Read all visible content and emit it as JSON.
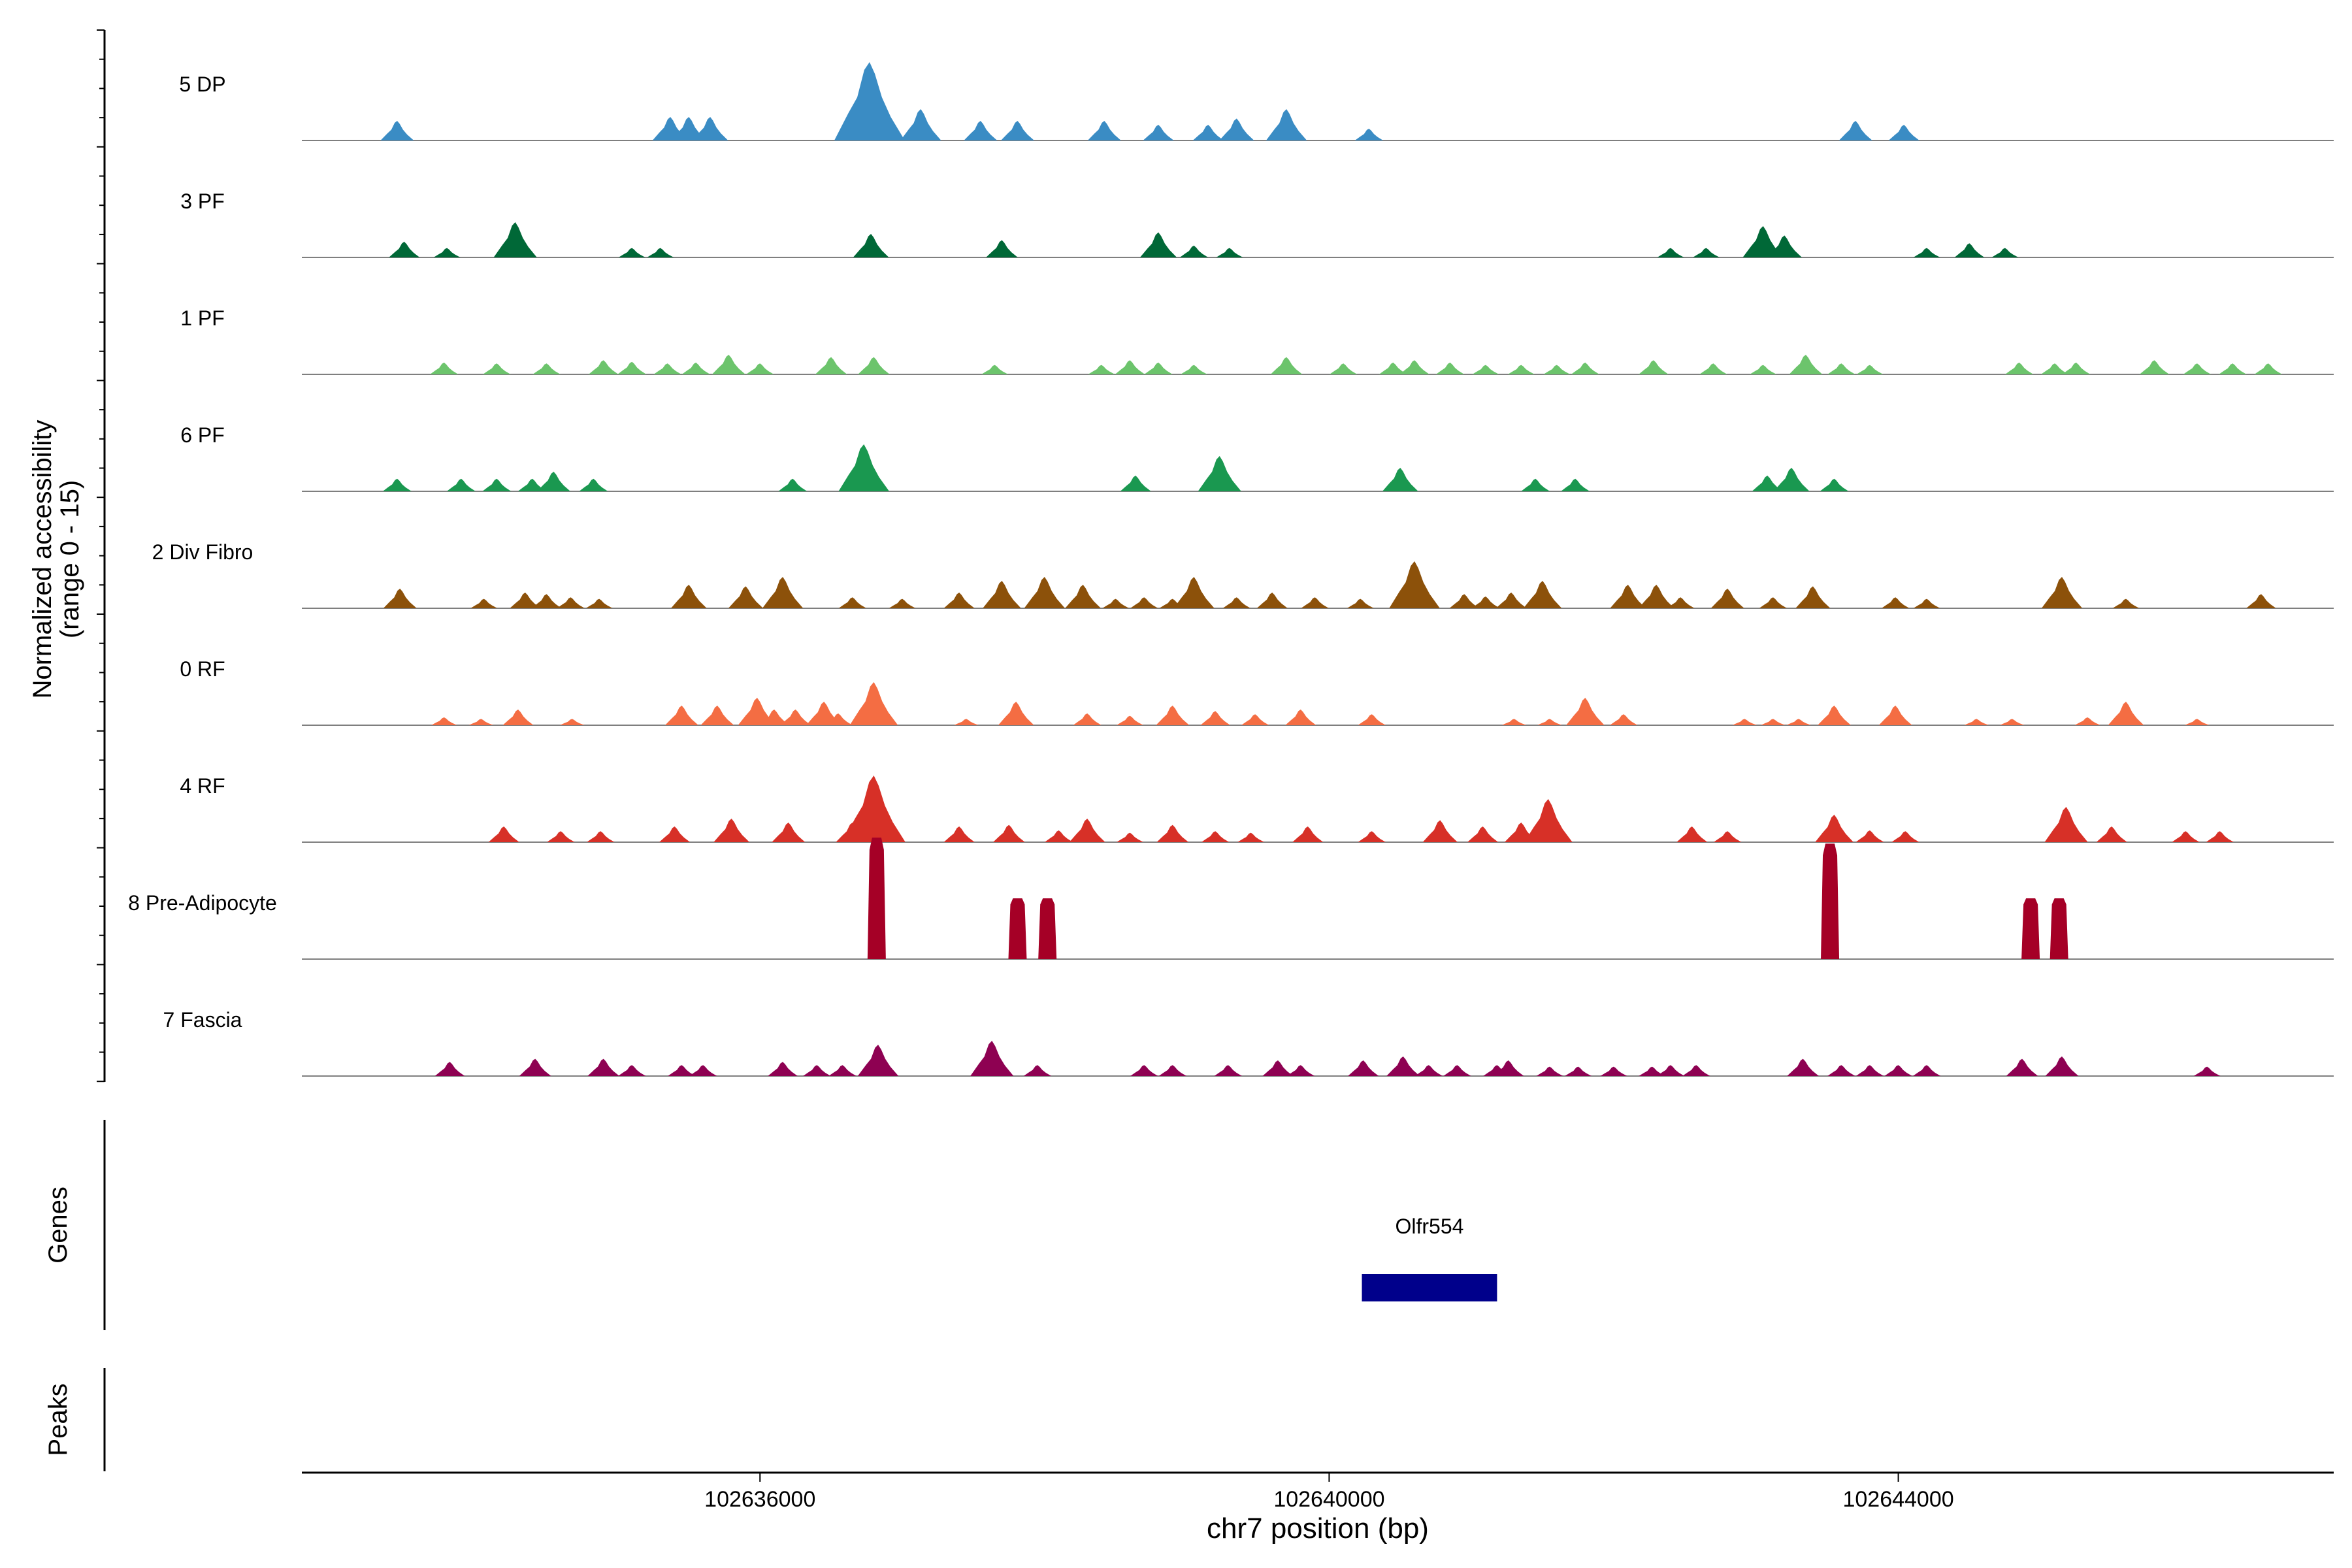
{
  "chart_data": {
    "type": "area",
    "ylabel_line1": "Normalized accessibility",
    "ylabel_line2": "(range 0 - 15)",
    "xlabel": "chr7 position (bp)",
    "xlim": [
      102632780,
      102647060
    ],
    "xticks": [
      102636000,
      102640000,
      102644000
    ],
    "xtick_labels": [
      "102636000",
      "102640000",
      "102644000"
    ],
    "tracks": [
      {
        "name": "5 DP",
        "color": "#3a8cc4",
        "peaks": [
          [
            102633450,
            0.25
          ],
          [
            102635370,
            0.3
          ],
          [
            102635500,
            0.3
          ],
          [
            102635650,
            0.3
          ],
          [
            102636770,
            1.0
          ],
          [
            102637130,
            0.4
          ],
          [
            102637550,
            0.25
          ],
          [
            102637810,
            0.25
          ],
          [
            102638420,
            0.25
          ],
          [
            102638800,
            0.2
          ],
          [
            102639150,
            0.2
          ],
          [
            102639350,
            0.28
          ],
          [
            102639700,
            0.4
          ],
          [
            102640280,
            0.15
          ],
          [
            102643700,
            0.25
          ],
          [
            102644040,
            0.2
          ]
        ]
      },
      {
        "name": "3 PF",
        "color": "#006837",
        "peaks": [
          [
            102633500,
            0.2
          ],
          [
            102633800,
            0.12
          ],
          [
            102634280,
            0.45
          ],
          [
            102635100,
            0.12
          ],
          [
            102635300,
            0.12
          ],
          [
            102636780,
            0.3
          ],
          [
            102637700,
            0.22
          ],
          [
            102638800,
            0.32
          ],
          [
            102639050,
            0.15
          ],
          [
            102639300,
            0.12
          ],
          [
            102642400,
            0.12
          ],
          [
            102642650,
            0.12
          ],
          [
            102643050,
            0.4
          ],
          [
            102643200,
            0.28
          ],
          [
            102644200,
            0.12
          ],
          [
            102644500,
            0.18
          ],
          [
            102644750,
            0.12
          ]
        ]
      },
      {
        "name": "1 PF",
        "color": "#6cc46c",
        "peaks": [
          [
            102633780,
            0.15
          ],
          [
            102634150,
            0.14
          ],
          [
            102634500,
            0.14
          ],
          [
            102634900,
            0.18
          ],
          [
            102635100,
            0.16
          ],
          [
            102635350,
            0.14
          ],
          [
            102635550,
            0.15
          ],
          [
            102635780,
            0.25
          ],
          [
            102636000,
            0.14
          ],
          [
            102636500,
            0.22
          ],
          [
            102636800,
            0.22
          ],
          [
            102637650,
            0.12
          ],
          [
            102638400,
            0.12
          ],
          [
            102638600,
            0.18
          ],
          [
            102638800,
            0.15
          ],
          [
            102639050,
            0.12
          ],
          [
            102639700,
            0.22
          ],
          [
            102640100,
            0.14
          ],
          [
            102640450,
            0.15
          ],
          [
            102640600,
            0.18
          ],
          [
            102640850,
            0.15
          ],
          [
            102641100,
            0.12
          ],
          [
            102641350,
            0.12
          ],
          [
            102641600,
            0.12
          ],
          [
            102641800,
            0.15
          ],
          [
            102642280,
            0.18
          ],
          [
            102642700,
            0.14
          ],
          [
            102643050,
            0.12
          ],
          [
            102643350,
            0.25
          ],
          [
            102643600,
            0.14
          ],
          [
            102643800,
            0.12
          ],
          [
            102644850,
            0.15
          ],
          [
            102645100,
            0.14
          ],
          [
            102645250,
            0.15
          ],
          [
            102645800,
            0.18
          ],
          [
            102646100,
            0.14
          ],
          [
            102646350,
            0.14
          ],
          [
            102646600,
            0.14
          ]
        ]
      },
      {
        "name": "6 PF",
        "color": "#1a9850",
        "peaks": [
          [
            102633450,
            0.16
          ],
          [
            102633900,
            0.16
          ],
          [
            102634150,
            0.16
          ],
          [
            102634400,
            0.16
          ],
          [
            102634550,
            0.25
          ],
          [
            102634830,
            0.16
          ],
          [
            102636230,
            0.16
          ],
          [
            102636730,
            0.6
          ],
          [
            102638640,
            0.2
          ],
          [
            102639230,
            0.45
          ],
          [
            102640500,
            0.3
          ],
          [
            102641450,
            0.16
          ],
          [
            102641730,
            0.16
          ],
          [
            102643080,
            0.2
          ],
          [
            102643250,
            0.3
          ],
          [
            102643550,
            0.16
          ]
        ]
      },
      {
        "name": "2 Div Fibro",
        "color": "#8c510a",
        "peaks": [
          [
            102633470,
            0.25
          ],
          [
            102634060,
            0.12
          ],
          [
            102634350,
            0.2
          ],
          [
            102634500,
            0.18
          ],
          [
            102634670,
            0.14
          ],
          [
            102634870,
            0.12
          ],
          [
            102635500,
            0.3
          ],
          [
            102635900,
            0.28
          ],
          [
            102636160,
            0.4
          ],
          [
            102636650,
            0.14
          ],
          [
            102637000,
            0.12
          ],
          [
            102637400,
            0.2
          ],
          [
            102637700,
            0.35
          ],
          [
            102638000,
            0.4
          ],
          [
            102638270,
            0.3
          ],
          [
            102638500,
            0.12
          ],
          [
            102638700,
            0.14
          ],
          [
            102638900,
            0.12
          ],
          [
            102639050,
            0.4
          ],
          [
            102639350,
            0.14
          ],
          [
            102639600,
            0.2
          ],
          [
            102639900,
            0.14
          ],
          [
            102640220,
            0.12
          ],
          [
            102640600,
            0.6
          ],
          [
            102640950,
            0.18
          ],
          [
            102641100,
            0.15
          ],
          [
            102641280,
            0.2
          ],
          [
            102641500,
            0.35
          ],
          [
            102642100,
            0.3
          ],
          [
            102642300,
            0.3
          ],
          [
            102642470,
            0.14
          ],
          [
            102642800,
            0.25
          ],
          [
            102643120,
            0.14
          ],
          [
            102643400,
            0.28
          ],
          [
            102643980,
            0.14
          ],
          [
            102644200,
            0.12
          ],
          [
            102645150,
            0.4
          ],
          [
            102645600,
            0.12
          ],
          [
            102646550,
            0.18
          ]
        ]
      },
      {
        "name": "0 RF",
        "color": "#f46d43",
        "peaks": [
          [
            102633780,
            0.1
          ],
          [
            102634040,
            0.08
          ],
          [
            102634300,
            0.2
          ],
          [
            102634680,
            0.08
          ],
          [
            102635450,
            0.25
          ],
          [
            102635700,
            0.25
          ],
          [
            102635980,
            0.35
          ],
          [
            102636100,
            0.2
          ],
          [
            102636250,
            0.2
          ],
          [
            102636450,
            0.3
          ],
          [
            102636550,
            0.15
          ],
          [
            102636800,
            0.55
          ],
          [
            102637450,
            0.08
          ],
          [
            102637800,
            0.3
          ],
          [
            102638300,
            0.15
          ],
          [
            102638600,
            0.12
          ],
          [
            102638900,
            0.25
          ],
          [
            102639200,
            0.18
          ],
          [
            102639480,
            0.14
          ],
          [
            102639800,
            0.2
          ],
          [
            102640300,
            0.14
          ],
          [
            102641300,
            0.08
          ],
          [
            102641550,
            0.08
          ],
          [
            102641800,
            0.35
          ],
          [
            102642070,
            0.14
          ],
          [
            102642920,
            0.08
          ],
          [
            102643120,
            0.08
          ],
          [
            102643300,
            0.08
          ],
          [
            102643550,
            0.25
          ],
          [
            102643980,
            0.25
          ],
          [
            102644550,
            0.08
          ],
          [
            102644800,
            0.08
          ],
          [
            102645330,
            0.1
          ],
          [
            102645600,
            0.3
          ],
          [
            102646100,
            0.08
          ]
        ]
      },
      {
        "name": "4 RF",
        "color": "#d73027",
        "peaks": [
          [
            102634200,
            0.2
          ],
          [
            102634600,
            0.14
          ],
          [
            102634880,
            0.14
          ],
          [
            102635400,
            0.2
          ],
          [
            102635800,
            0.3
          ],
          [
            102636200,
            0.25
          ],
          [
            102636650,
            0.25
          ],
          [
            102636800,
            0.85
          ],
          [
            102637400,
            0.2
          ],
          [
            102637750,
            0.22
          ],
          [
            102638100,
            0.15
          ],
          [
            102638300,
            0.3
          ],
          [
            102638600,
            0.12
          ],
          [
            102638900,
            0.22
          ],
          [
            102639200,
            0.14
          ],
          [
            102639450,
            0.12
          ],
          [
            102639850,
            0.2
          ],
          [
            102640300,
            0.14
          ],
          [
            102640780,
            0.28
          ],
          [
            102641080,
            0.2
          ],
          [
            102641350,
            0.25
          ],
          [
            102641540,
            0.55
          ],
          [
            102642550,
            0.2
          ],
          [
            102642800,
            0.14
          ],
          [
            102643550,
            0.35
          ],
          [
            102643800,
            0.15
          ],
          [
            102644050,
            0.14
          ],
          [
            102645180,
            0.45
          ],
          [
            102645500,
            0.2
          ],
          [
            102646020,
            0.14
          ],
          [
            102646260,
            0.14
          ]
        ]
      },
      {
        "name": "8 Pre-Adipocyte",
        "color": "#a50026",
        "peaks": [
          [
            102636820,
            1.0
          ],
          [
            102637810,
            0.5
          ],
          [
            102638020,
            0.5
          ],
          [
            102643520,
            0.95
          ],
          [
            102644930,
            0.5
          ],
          [
            102645130,
            0.5
          ]
        ]
      },
      {
        "name": "7 Fascia",
        "color": "#8e0152",
        "peaks": [
          [
            102633820,
            0.18
          ],
          [
            102634420,
            0.22
          ],
          [
            102634900,
            0.22
          ],
          [
            102635100,
            0.14
          ],
          [
            102635450,
            0.14
          ],
          [
            102635600,
            0.14
          ],
          [
            102636160,
            0.18
          ],
          [
            102636400,
            0.14
          ],
          [
            102636580,
            0.14
          ],
          [
            102636830,
            0.4
          ],
          [
            102637630,
            0.45
          ],
          [
            102637950,
            0.14
          ],
          [
            102638700,
            0.14
          ],
          [
            102638900,
            0.14
          ],
          [
            102639290,
            0.14
          ],
          [
            102639640,
            0.2
          ],
          [
            102639800,
            0.14
          ],
          [
            102640240,
            0.2
          ],
          [
            102640520,
            0.25
          ],
          [
            102640700,
            0.14
          ],
          [
            102640900,
            0.14
          ],
          [
            102641180,
            0.14
          ],
          [
            102641260,
            0.2
          ],
          [
            102641550,
            0.12
          ],
          [
            102641750,
            0.12
          ],
          [
            102642000,
            0.12
          ],
          [
            102642270,
            0.12
          ],
          [
            102642400,
            0.14
          ],
          [
            102642580,
            0.14
          ],
          [
            102643330,
            0.22
          ],
          [
            102643600,
            0.14
          ],
          [
            102643800,
            0.14
          ],
          [
            102644000,
            0.14
          ],
          [
            102644200,
            0.14
          ],
          [
            102644870,
            0.22
          ],
          [
            102645150,
            0.25
          ],
          [
            102646170,
            0.12
          ]
        ]
      }
    ],
    "genes_label": "Genes",
    "peaks_label": "Peaks",
    "genes": [
      {
        "name": "Olfr554",
        "start": 102640230,
        "end": 102641180,
        "color": "#00008b"
      }
    ]
  }
}
